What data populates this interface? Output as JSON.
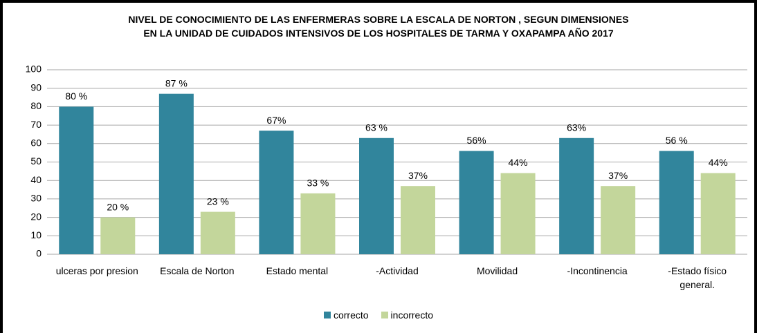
{
  "chart_data": {
    "type": "bar",
    "title": "NIVEL DE CONOCIMIENTO  DE LAS ENFERMERAS  SOBRE LA ESCALA DE NORTON , SEGUN  DIMENSIONES\nEN  LA UNIDAD DE CUIDADOS INTENSIVOS  DE LOS HOSPITALES  DE TARMA Y OXAPAMPA  AÑO 2017",
    "categories": [
      "ulceras por presion",
      "Escala de Norton",
      "Estado mental",
      "-Actividad",
      "Movilidad",
      "-Incontinencia",
      "-Estado físico general."
    ],
    "series": [
      {
        "name": "correcto",
        "color": "#31859c",
        "values": [
          80,
          87,
          67,
          63,
          56,
          63,
          56
        ],
        "value_labels": [
          "80 %",
          "87 %",
          "67%",
          "63 %",
          "56%",
          "63%",
          "56 %"
        ]
      },
      {
        "name": "incorrecto",
        "color": "#c3d69b",
        "values": [
          20,
          23,
          33,
          37,
          44,
          37,
          44
        ],
        "value_labels": [
          "20 %",
          "23 %",
          "33 %",
          "37%",
          "44%",
          "37%",
          "44%"
        ]
      }
    ],
    "ylim": [
      0,
      100
    ],
    "yticks": [
      0,
      10,
      20,
      30,
      40,
      50,
      60,
      70,
      80,
      90,
      100
    ],
    "grid": true,
    "legend": "bottom"
  }
}
